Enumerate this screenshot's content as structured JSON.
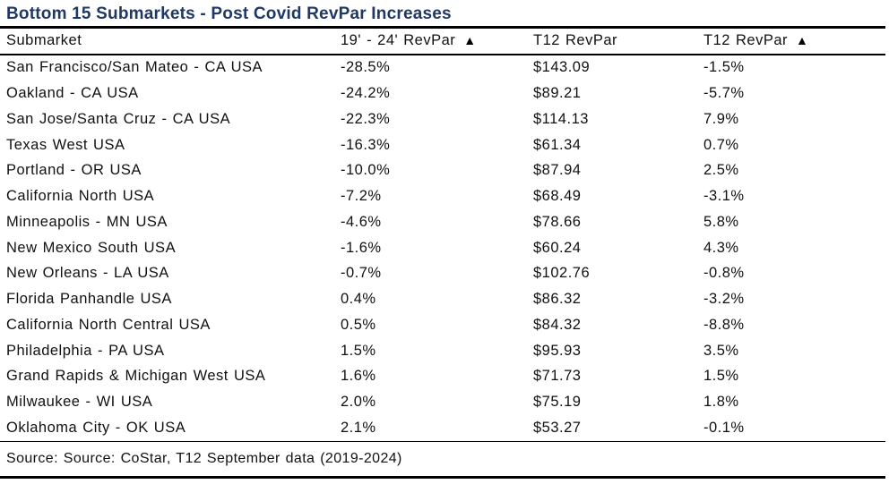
{
  "title": "Bottom 15 Submarkets - Post Covid RevPar Increases",
  "header": {
    "cells": [
      {
        "label": "Submarket",
        "delta": ""
      },
      {
        "label": "19' - 24' RevPar",
        "delta": "▲"
      },
      {
        "label": "T12 RevPar",
        "delta": ""
      },
      {
        "label": "T12 RevPar",
        "delta": "▲"
      }
    ]
  },
  "source": "Source: Source: CoStar, T12 September data (2019-2024)",
  "colors": {
    "title_text": "#1f3864",
    "body_text": "#111111",
    "rule": "#000000"
  },
  "chart_data": {
    "type": "table",
    "title": "Bottom 15 Submarkets - Post Covid RevPar Increases",
    "columns": [
      "Submarket",
      "19' - 24' RevPar ▲",
      "T12 RevPar",
      "T12 RevPar ▲"
    ],
    "rows": [
      [
        "San Francisco/San Mateo - CA USA",
        "-28.5%",
        "$143.09",
        "-1.5%"
      ],
      [
        "Oakland - CA USA",
        "-24.2%",
        "$89.21",
        "-5.7%"
      ],
      [
        "San Jose/Santa Cruz - CA USA",
        "-22.3%",
        "$114.13",
        "7.9%"
      ],
      [
        "Texas West USA",
        "-16.3%",
        "$61.34",
        "0.7%"
      ],
      [
        "Portland - OR USA",
        "-10.0%",
        "$87.94",
        "2.5%"
      ],
      [
        "California North USA",
        "-7.2%",
        "$68.49",
        "-3.1%"
      ],
      [
        "Minneapolis - MN USA",
        "-4.6%",
        "$78.66",
        "5.8%"
      ],
      [
        "New Mexico South USA",
        "-1.6%",
        "$60.24",
        "4.3%"
      ],
      [
        "New Orleans - LA USA",
        "-0.7%",
        "$102.76",
        "-0.8%"
      ],
      [
        "Florida Panhandle USA",
        "0.4%",
        "$86.32",
        "-3.2%"
      ],
      [
        "California North Central USA",
        "0.5%",
        "$84.32",
        "-8.8%"
      ],
      [
        "Philadelphia - PA USA",
        "1.5%",
        "$95.93",
        "3.5%"
      ],
      [
        "Grand Rapids & Michigan West USA",
        "1.6%",
        "$71.73",
        "1.5%"
      ],
      [
        "Milwaukee - WI USA",
        "2.0%",
        "$75.19",
        "1.8%"
      ],
      [
        "Oklahoma City - OK USA",
        "2.1%",
        "$53.27",
        "-0.1%"
      ]
    ],
    "source": "Source: Source: CoStar, T12 September data (2019-2024)"
  }
}
